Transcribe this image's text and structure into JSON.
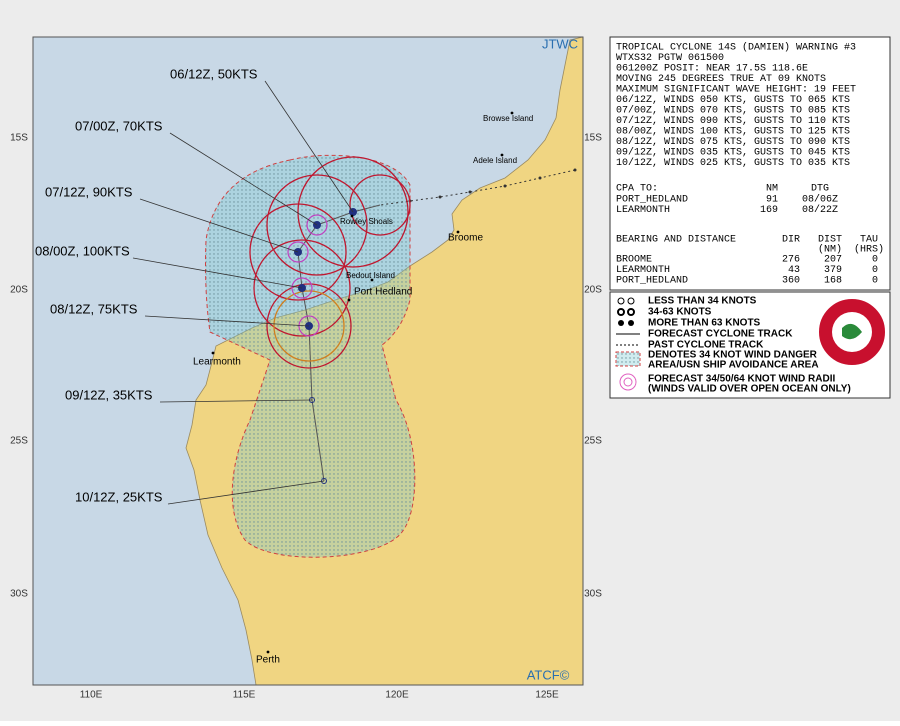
{
  "map": {
    "logo": "JTWC",
    "footer": "ATCF©",
    "lat_labels": [
      "15S",
      "20S",
      "25S",
      "30S"
    ],
    "lon_labels": [
      "110E",
      "115E",
      "120E",
      "125E"
    ],
    "places": [
      "Browse Island",
      "Adele Island",
      "Broome",
      "Rowley Shoals",
      "Bedout Island",
      "Port Hedland",
      "Learmonth",
      "Perth"
    ],
    "forecast_labels": [
      "06/12Z, 50KTS",
      "07/00Z, 70KTS",
      "07/12Z, 90KTS",
      "08/00Z, 100KTS",
      "08/12Z, 75KTS",
      "09/12Z, 35KTS",
      "10/12Z, 25KTS"
    ]
  },
  "warning": {
    "lines": [
      "TROPICAL CYCLONE 14S (DAMIEN) WARNING #3",
      "WTXS32 PGTW 061500",
      "061200Z POSIT: NEAR 17.5S 118.6E",
      "MOVING 245 DEGREES TRUE AT 09 KNOTS",
      "MAXIMUM SIGNIFICANT WAVE HEIGHT: 19 FEET",
      "06/12Z, WINDS 050 KTS, GUSTS TO 065 KTS",
      "07/00Z, WINDS 070 KTS, GUSTS TO 085 KTS",
      "07/12Z, WINDS 090 KTS, GUSTS TO 110 KTS",
      "08/00Z, WINDS 100 KTS, GUSTS TO 125 KTS",
      "08/12Z, WINDS 075 KTS, GUSTS TO 090 KTS",
      "09/12Z, WINDS 035 KTS, GUSTS TO 045 KTS",
      "10/12Z, WINDS 025 KTS, GUSTS TO 035 KTS"
    ]
  },
  "cpa": {
    "title": "CPA TO:",
    "headers": [
      "NM",
      "DTG"
    ],
    "rows": [
      [
        "PORT_HEDLAND",
        91,
        "08/06Z"
      ],
      [
        "LEARMONTH",
        169,
        "08/22Z"
      ]
    ]
  },
  "bearing": {
    "title": "BEARING AND DISTANCE",
    "headers": [
      "DIR",
      "DIST",
      "TAU"
    ],
    "units": [
      "(NM)",
      "(HRS)"
    ],
    "rows": [
      [
        "BROOME",
        276,
        207,
        0
      ],
      [
        "LEARMONTH",
        43,
        379,
        0
      ],
      [
        "PORT_HEDLAND",
        360,
        168,
        0
      ]
    ]
  },
  "legend": [
    "LESS THAN 34 KNOTS",
    "34-63 KNOTS",
    "MORE THAN 63 KNOTS",
    "FORECAST CYCLONE TRACK",
    "PAST CYCLONE TRACK",
    "DENOTES 34 KNOT WIND DANGER",
    "AREA/USN SHIP AVOIDANCE AREA",
    "FORECAST 34/50/64 KNOT WIND RADII",
    "(WINDS VALID OVER OPEN OCEAN ONLY)"
  ]
}
